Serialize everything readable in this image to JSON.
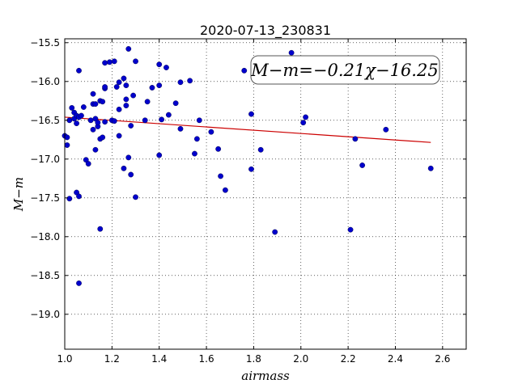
{
  "chart_data": {
    "type": "scatter",
    "title": "2020-07-13_230831",
    "xlabel": "airmass",
    "ylabel": "M−m",
    "xlim": [
      1.0,
      2.7
    ],
    "ylim": [
      -19.45,
      -15.45
    ],
    "y_inverted": true,
    "grid": true,
    "x_ticks": [
      1.0,
      1.2,
      1.4,
      1.6,
      1.8,
      2.0,
      2.2,
      2.4,
      2.6
    ],
    "x_tick_labels": [
      "1.0",
      "1.2",
      "1.4",
      "1.6",
      "1.8",
      "2.0",
      "2.2",
      "2.4",
      "2.6"
    ],
    "y_ticks": [
      -15.5,
      -16.0,
      -16.5,
      -17.0,
      -17.5,
      -18.0,
      -18.5,
      -19.0
    ],
    "y_tick_labels": [
      "−15.5",
      "−16.0",
      "−16.5",
      "−17.0",
      "−17.5",
      "−18.0",
      "−18.5",
      "−19.0"
    ],
    "annotation": "M−m=−0.21χ−16.25",
    "fit": {
      "slope": -0.21,
      "intercept": -16.25,
      "x_range": [
        1.0,
        2.55
      ],
      "color": "#cc0000"
    },
    "point_color": "#0000cc",
    "points": [
      [
        1.0,
        -16.7
      ],
      [
        1.01,
        -16.72
      ],
      [
        1.01,
        -16.82
      ],
      [
        1.02,
        -16.5
      ],
      [
        1.02,
        -17.51
      ],
      [
        1.03,
        -16.34
      ],
      [
        1.04,
        -16.48
      ],
      [
        1.04,
        -16.4
      ],
      [
        1.05,
        -16.44
      ],
      [
        1.05,
        -16.54
      ],
      [
        1.05,
        -17.43
      ],
      [
        1.06,
        -17.48
      ],
      [
        1.06,
        -15.86
      ],
      [
        1.06,
        -16.46
      ],
      [
        1.07,
        -16.44
      ],
      [
        1.06,
        -18.6
      ],
      [
        1.08,
        -16.33
      ],
      [
        1.09,
        -17.01
      ],
      [
        1.1,
        -17.06
      ],
      [
        1.11,
        -16.5
      ],
      [
        1.12,
        -16.62
      ],
      [
        1.12,
        -16.16
      ],
      [
        1.12,
        -16.29
      ],
      [
        1.13,
        -16.88
      ],
      [
        1.13,
        -16.29
      ],
      [
        1.13,
        -16.48
      ],
      [
        1.14,
        -16.58
      ],
      [
        1.14,
        -16.53
      ],
      [
        1.15,
        -16.25
      ],
      [
        1.15,
        -16.74
      ],
      [
        1.15,
        -17.9
      ],
      [
        1.16,
        -16.72
      ],
      [
        1.16,
        -16.26
      ],
      [
        1.17,
        -16.09
      ],
      [
        1.17,
        -16.07
      ],
      [
        1.17,
        -15.76
      ],
      [
        1.17,
        -16.52
      ],
      [
        1.19,
        -15.75
      ],
      [
        1.2,
        -16.5
      ],
      [
        1.21,
        -15.74
      ],
      [
        1.21,
        -16.51
      ],
      [
        1.22,
        -16.07
      ],
      [
        1.23,
        -16.36
      ],
      [
        1.23,
        -16.01
      ],
      [
        1.23,
        -16.7
      ],
      [
        1.25,
        -15.96
      ],
      [
        1.25,
        -17.12
      ],
      [
        1.26,
        -16.05
      ],
      [
        1.26,
        -16.31
      ],
      [
        1.26,
        -16.23
      ],
      [
        1.27,
        -16.98
      ],
      [
        1.27,
        -15.58
      ],
      [
        1.28,
        -16.57
      ],
      [
        1.28,
        -17.2
      ],
      [
        1.29,
        -16.18
      ],
      [
        1.3,
        -15.74
      ],
      [
        1.3,
        -17.49
      ],
      [
        1.34,
        -16.5
      ],
      [
        1.35,
        -16.26
      ],
      [
        1.37,
        -16.08
      ],
      [
        1.4,
        -15.78
      ],
      [
        1.4,
        -16.05
      ],
      [
        1.4,
        -16.95
      ],
      [
        1.41,
        -16.49
      ],
      [
        1.43,
        -15.82
      ],
      [
        1.44,
        -16.43
      ],
      [
        1.47,
        -16.28
      ],
      [
        1.49,
        -16.01
      ],
      [
        1.49,
        -16.61
      ],
      [
        1.53,
        -15.99
      ],
      [
        1.55,
        -16.93
      ],
      [
        1.56,
        -16.74
      ],
      [
        1.57,
        -16.5
      ],
      [
        1.62,
        -16.65
      ],
      [
        1.65,
        -16.87
      ],
      [
        1.66,
        -17.22
      ],
      [
        1.68,
        -17.4
      ],
      [
        1.76,
        -15.86
      ],
      [
        1.79,
        -16.42
      ],
      [
        1.79,
        -17.13
      ],
      [
        1.83,
        -16.88
      ],
      [
        1.89,
        -17.94
      ],
      [
        1.96,
        -15.63
      ],
      [
        2.01,
        -16.53
      ],
      [
        2.02,
        -16.46
      ],
      [
        2.21,
        -17.91
      ],
      [
        2.23,
        -16.74
      ],
      [
        2.26,
        -17.08
      ],
      [
        2.36,
        -16.62
      ],
      [
        2.55,
        -17.12
      ]
    ]
  }
}
